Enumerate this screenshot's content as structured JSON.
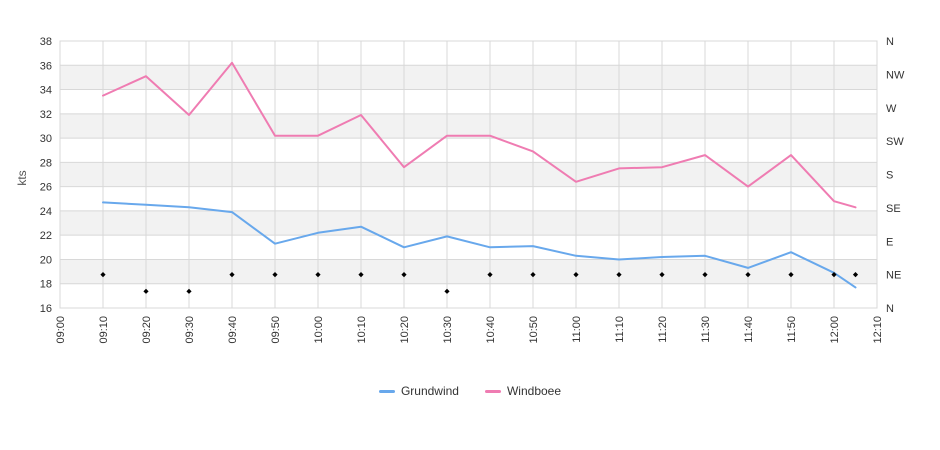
{
  "chart_data": {
    "type": "line",
    "ylabel": "kts",
    "ylim": [
      16,
      38
    ],
    "y_left": {
      "min": 16,
      "max": 38,
      "step": 2
    },
    "y_right_labels_top_to_bottom": [
      "N",
      "NW",
      "W",
      "SW",
      "S",
      "SE",
      "E",
      "NE",
      "N"
    ],
    "x_tick_labels": [
      "09:00",
      "09:10",
      "09:20",
      "09:30",
      "09:40",
      "09:50",
      "10:00",
      "10:10",
      "10:20",
      "10:30",
      "10:40",
      "10:50",
      "11:00",
      "11:10",
      "11:20",
      "11:30",
      "11:40",
      "11:50",
      "12:00",
      "12:10"
    ],
    "x": [
      "09:10",
      "09:20",
      "09:30",
      "09:40",
      "09:50",
      "10:00",
      "10:10",
      "10:20",
      "10:30",
      "10:40",
      "10:50",
      "11:00",
      "11:10",
      "11:20",
      "11:30",
      "11:40",
      "11:50",
      "12:00",
      "12:05"
    ],
    "series": [
      {
        "name": "Grundwind",
        "color": "#68a8ec",
        "values": [
          24.7,
          24.5,
          24.3,
          23.9,
          21.3,
          22.2,
          22.7,
          21.0,
          21.9,
          21.0,
          21.1,
          20.3,
          20.0,
          20.2,
          20.3,
          19.3,
          20.6,
          18.9,
          17.7
        ]
      },
      {
        "name": "Windboee",
        "color": "#ef7cb2",
        "values": [
          33.5,
          35.1,
          31.9,
          36.2,
          30.2,
          30.2,
          31.9,
          27.6,
          30.2,
          30.2,
          28.9,
          26.4,
          27.5,
          27.6,
          28.6,
          26.0,
          28.6,
          24.8,
          24.3
        ]
      }
    ],
    "wind_direction": {
      "marker": "diamond",
      "color": "#000000",
      "values": [
        "NE",
        "NNE",
        "NNE",
        "NE",
        "NE",
        "NE",
        "NE",
        "NE",
        "NNE",
        "NE",
        "NE",
        "NE",
        "NE",
        "NE",
        "NE",
        "NE",
        "NE",
        "NE",
        "NE"
      ]
    },
    "legend": {
      "items": [
        "Grundwind",
        "Windboee"
      ],
      "position": "bottom-center"
    },
    "grid": {
      "vertical": true,
      "horizontal": true,
      "line_color": "#d8d8d8",
      "band_fill": "#f2f2f2"
    }
  }
}
